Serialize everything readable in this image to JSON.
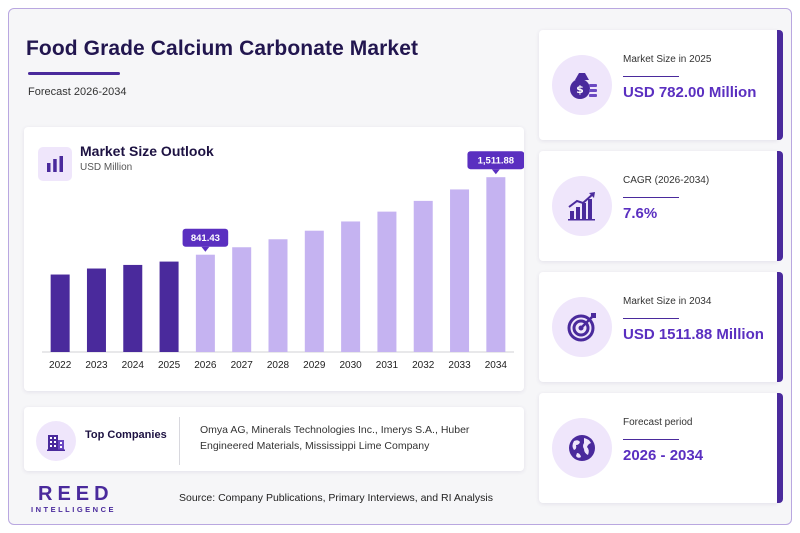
{
  "header": {
    "title": "Food Grade Calcium Carbonate Market",
    "subtitle": "Forecast 2026-2034"
  },
  "chart_panel": {
    "title": "Market Size Outlook",
    "unit": "USD Million",
    "icon": "bar-chart-icon"
  },
  "chart_data": {
    "type": "bar",
    "title": "Market Size Outlook",
    "ylabel": "USD Million",
    "categories": [
      "2022",
      "2023",
      "2024",
      "2025",
      "2026",
      "2027",
      "2028",
      "2029",
      "2030",
      "2031",
      "2032",
      "2033",
      "2034"
    ],
    "values": [
      670,
      722,
      753,
      782,
      841.43,
      906,
      975,
      1049,
      1129,
      1214,
      1307,
      1406,
      1511.88
    ],
    "historical_count": 4,
    "labeled": {
      "2026": "841.43",
      "2034": "1,511.88"
    },
    "ylim": [
      0,
      1600
    ],
    "colors": {
      "historical": "#4a2a9c",
      "forecast": "#c5b3f1",
      "callout": "#5a2fc0"
    },
    "grid": false
  },
  "companies": {
    "label": "Top Companies",
    "list": "Omya AG, Minerals Technologies Inc., Imerys S.A., Huber Engineered Materials, Mississippi Lime Company",
    "icon": "building-icon"
  },
  "stats": [
    {
      "label": "Market Size in 2025",
      "value": "USD 782.00 Million",
      "icon": "money-bag-icon"
    },
    {
      "label": "CAGR (2026-2034)",
      "value": "7.6%",
      "icon": "growth-chart-icon"
    },
    {
      "label": "Market Size in 2034",
      "value": "USD 1511.88 Million",
      "icon": "target-icon"
    },
    {
      "label": "Forecast period",
      "value": "2026 - 2034",
      "icon": "globe-icon"
    }
  ],
  "footer": {
    "logo_main": "REED",
    "logo_sub": "INTELLIGENCE",
    "source": "Source: Company Publications, Primary Interviews, and RI Analysis"
  },
  "theme": {
    "accent": "#4a2a9c",
    "accent_light": "#efe6fb",
    "value_color": "#5a2fc0"
  }
}
